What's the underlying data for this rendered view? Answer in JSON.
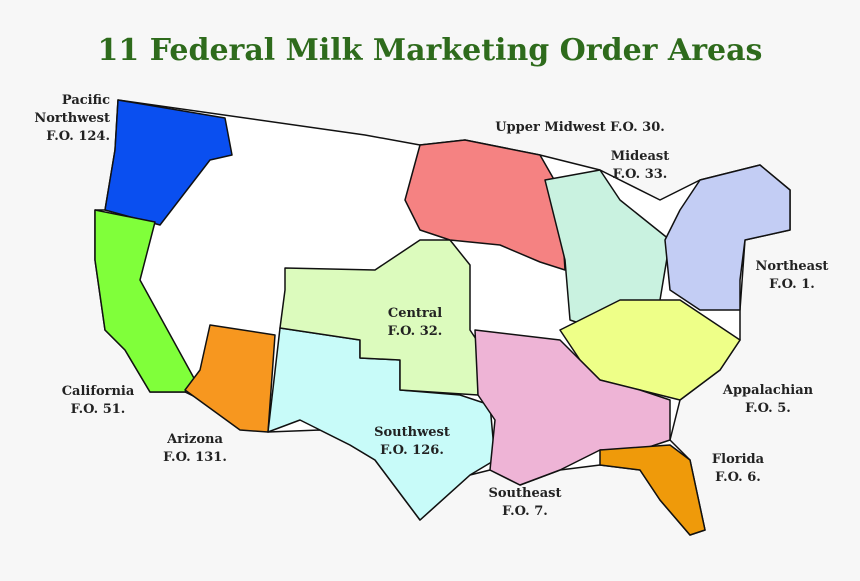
{
  "header": {
    "title": "11 Federal Milk Marketing Order Areas"
  },
  "regions": [
    {
      "label_lines": [
        "Pacific",
        "Northwest",
        "F.O. 124."
      ],
      "color": "#0a4ff0"
    },
    {
      "label_lines": [
        "California",
        "F.O. 51."
      ],
      "color": "#80ff3a"
    },
    {
      "label_lines": [
        "Arizona",
        "F.O. 131."
      ],
      "color": "#f7971f"
    },
    {
      "label_lines": [
        "Southwest",
        "F.O. 126."
      ],
      "color": "#c8fbf9"
    },
    {
      "label_lines": [
        "Central",
        "F.O. 32."
      ],
      "color": "#dcfbbd"
    },
    {
      "label_lines": [
        "Upper Midwest F.O. 30."
      ],
      "color": "#f58282"
    },
    {
      "label_lines": [
        "Mideast",
        "F.O. 33."
      ],
      "color": "#c9f2e0"
    },
    {
      "label_lines": [
        "Northeast",
        "F.O. 1."
      ],
      "color": "#c3cdf4"
    },
    {
      "label_lines": [
        "Appalachian",
        "F.O. 5."
      ],
      "color": "#eeff88"
    },
    {
      "label_lines": [
        "Southeast",
        "F.O. 7."
      ],
      "color": "#eeb4d6"
    },
    {
      "label_lines": [
        "Florida",
        "F.O. 6."
      ],
      "color": "#ef9a0a"
    }
  ]
}
